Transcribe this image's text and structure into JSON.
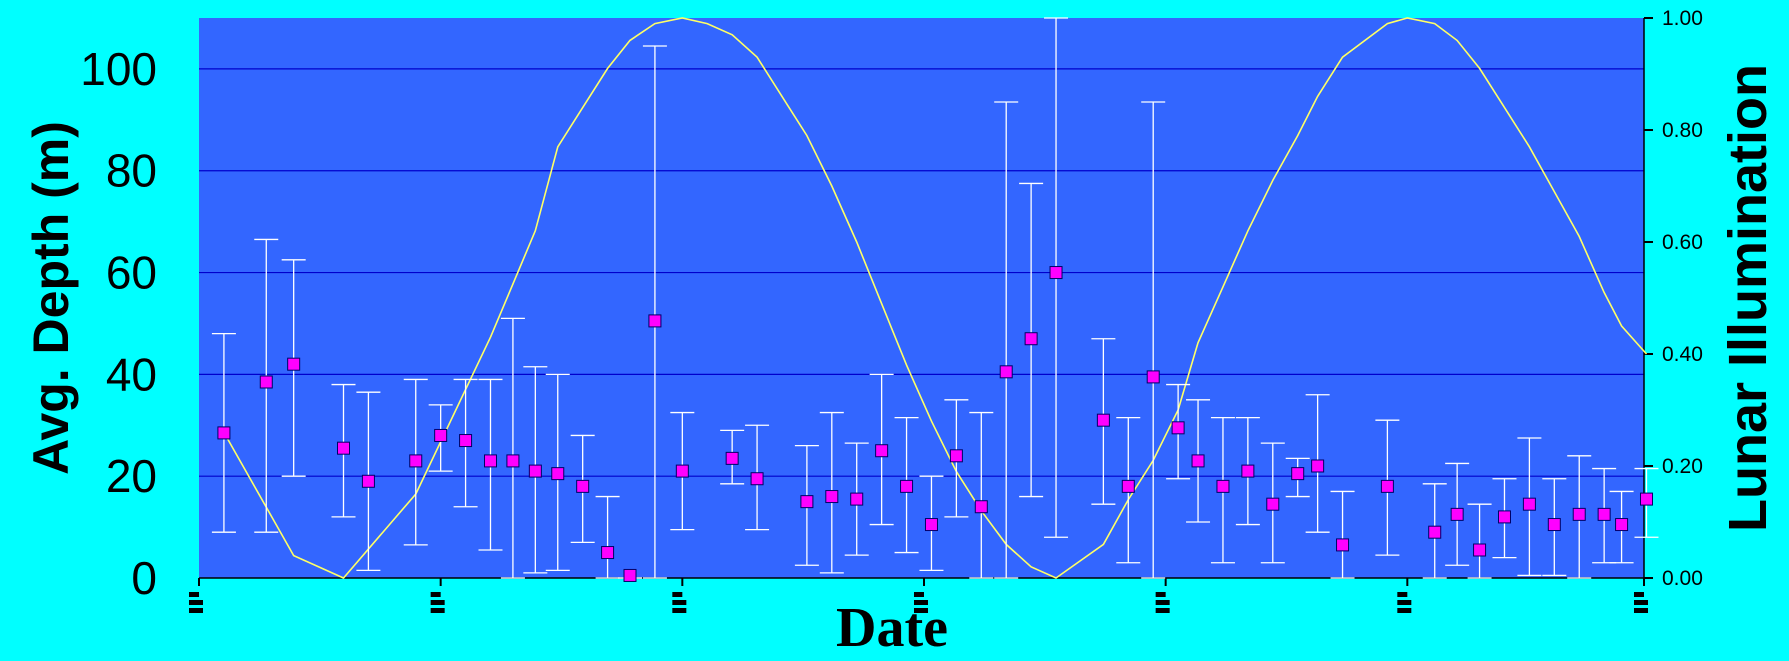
{
  "colors": {
    "page_background": "#00FFFF",
    "plot_background": "#3366FF",
    "gridline": "#0000CC",
    "depth_marker": "#FF00FF",
    "marker_edge": "#000066",
    "error_bar": "#FFFFFF",
    "lunar_line": "#FFFF66",
    "text": "#000000"
  },
  "chart_data": {
    "type": "scatter",
    "title": "",
    "xlabel": "Date",
    "ylabel": "Avg. Depth (m)",
    "y2label": "Lunar Illumination",
    "ylim": [
      0,
      110
    ],
    "y2lim": [
      0,
      1
    ],
    "yticks": [
      "0",
      "20",
      "40",
      "60",
      "80",
      "100"
    ],
    "y2ticks": [
      "0.00",
      "0.20",
      "0.40",
      "0.60",
      "0.80",
      "1.00"
    ],
    "grid": true,
    "legend": "none",
    "x_range": [
      0,
      58
    ],
    "x_tick_values": [
      0,
      9.7,
      19.4,
      29.1,
      38.8,
      48.5,
      58.2
    ],
    "x_tick_labels": [
      "",
      "",
      "",
      "",
      "",
      "",
      ""
    ],
    "series": [
      {
        "chart_type": "scatter-errorbar",
        "axis": "left",
        "x": [
          1,
          2.7,
          3.8,
          5.8,
          6.8,
          8.7,
          9.7,
          10.7,
          11.7,
          12.6,
          13.5,
          14.4,
          15.4,
          16.4,
          17.3,
          18.3,
          19.4,
          21.4,
          22.4,
          24.4,
          25.4,
          26.4,
          27.4,
          28.4,
          29.4,
          30.4,
          31.4,
          32.4,
          33.4,
          34.4,
          36.3,
          37.3,
          38.3,
          39.3,
          40.1,
          41.1,
          42.1,
          43.1,
          44.1,
          44.9,
          45.9,
          47.7,
          49.6,
          50.5,
          51.4,
          52.4,
          53.4,
          54.4,
          55.4,
          56.4,
          57.1,
          58.1
        ],
        "y": [
          28.5,
          38.5,
          42,
          25.5,
          19,
          23,
          28,
          27,
          23,
          23,
          21,
          20.5,
          18,
          5,
          0.5,
          50.5,
          21,
          23.5,
          19.5,
          15,
          16,
          15.5,
          25,
          18,
          10.5,
          24,
          14,
          40.5,
          47,
          60,
          31,
          18,
          39.5,
          29.5,
          23,
          18,
          21,
          14.5,
          20.5,
          22,
          6.5,
          18,
          9,
          12.5,
          5.5,
          12,
          14.5,
          10.5,
          12.5,
          12.5,
          10.5,
          15.5
        ],
        "y_low": [
          9,
          9,
          20,
          12,
          1.5,
          6.5,
          21,
          14,
          5.5,
          0,
          1,
          1.5,
          7,
          0,
          0,
          0,
          9.5,
          18.5,
          9.5,
          2.5,
          1,
          4.5,
          10.5,
          5,
          1.5,
          12,
          0,
          0,
          16,
          8,
          14.5,
          3,
          0,
          19.5,
          11,
          3,
          10.5,
          3,
          16,
          9,
          0,
          4.5,
          0,
          2.5,
          0,
          4,
          0.5,
          0.5,
          0,
          3,
          3,
          8
        ],
        "y_high": [
          48,
          66.5,
          62.5,
          38,
          36.5,
          39,
          34,
          39,
          39,
          51,
          41.5,
          40,
          28,
          16,
          0,
          104.5,
          32.5,
          29,
          30,
          26,
          32.5,
          26.5,
          40,
          31.5,
          20,
          35,
          32.5,
          93.5,
          77.5,
          110,
          47,
          31.5,
          93.5,
          38,
          35,
          31.5,
          31.5,
          26.5,
          23.5,
          36,
          17,
          31,
          18.5,
          22.5,
          14.5,
          19.5,
          27.5,
          19.5,
          24,
          21.5,
          17,
          21.5
        ]
      },
      {
        "chart_type": "line",
        "axis": "right",
        "x": [
          1,
          3.8,
          5.8,
          8.7,
          11.7,
          13.5,
          14.4,
          15.4,
          16.4,
          17.3,
          18.3,
          19.4,
          20.4,
          21.4,
          22.4,
          23.4,
          24.4,
          25.4,
          26.4,
          27.4,
          28.4,
          29.4,
          30.4,
          31.4,
          32.4,
          33.4,
          34.4,
          36.3,
          37.3,
          38.3,
          39.3,
          40.1,
          41.1,
          42.1,
          43.1,
          44.1,
          44.9,
          45.9,
          47.7,
          48.5,
          49.6,
          50.5,
          51.4,
          52.4,
          53.4,
          54.4,
          55.4,
          56.4,
          57.1,
          58.1
        ],
        "y": [
          0.26,
          0.04,
          0.0,
          0.15,
          0.43,
          0.62,
          0.77,
          0.84,
          0.91,
          0.96,
          0.99,
          1.0,
          0.99,
          0.97,
          0.93,
          0.86,
          0.79,
          0.7,
          0.6,
          0.49,
          0.38,
          0.28,
          0.19,
          0.12,
          0.06,
          0.02,
          0.0,
          0.06,
          0.14,
          0.21,
          0.3,
          0.42,
          0.52,
          0.62,
          0.71,
          0.79,
          0.86,
          0.93,
          0.99,
          1.0,
          0.99,
          0.96,
          0.91,
          0.84,
          0.77,
          0.69,
          0.61,
          0.51,
          0.45,
          0.4
        ]
      }
    ]
  }
}
